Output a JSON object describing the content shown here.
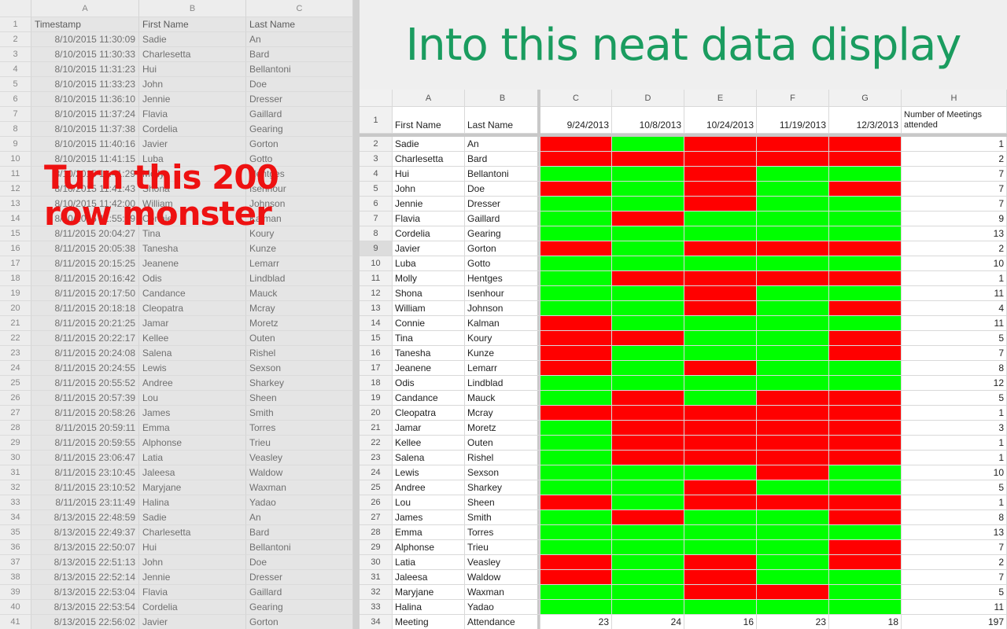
{
  "left_sheet": {
    "columns": [
      "A",
      "B",
      "C"
    ],
    "headers": [
      "Timestamp",
      "First Name",
      "Last Name"
    ],
    "rows": [
      [
        "2",
        "8/10/2015 11:30:09",
        "Sadie",
        "An"
      ],
      [
        "3",
        "8/10/2015 11:30:33",
        "Charlesetta",
        "Bard"
      ],
      [
        "4",
        "8/10/2015 11:31:23",
        "Hui",
        "Bellantoni"
      ],
      [
        "5",
        "8/10/2015 11:33:23",
        "John",
        "Doe"
      ],
      [
        "6",
        "8/10/2015 11:36:10",
        "Jennie",
        "Dresser"
      ],
      [
        "7",
        "8/10/2015 11:37:24",
        "Flavia",
        "Gaillard"
      ],
      [
        "8",
        "8/10/2015 11:37:38",
        "Cordelia",
        "Gearing"
      ],
      [
        "9",
        "8/10/2015 11:40:16",
        "Javier",
        "Gorton"
      ],
      [
        "10",
        "8/10/2015 11:41:15",
        "Luba",
        "Gotto"
      ],
      [
        "11",
        "8/10/2015 11:41:29",
        "Molly",
        "Hentges"
      ],
      [
        "12",
        "8/10/2015 11:41:43",
        "Shona",
        "Isenhour"
      ],
      [
        "13",
        "8/10/2015 11:42:00",
        "William",
        "Johnson"
      ],
      [
        "14",
        "8/10/2015 11:55:59",
        "Connie",
        "Kalman"
      ],
      [
        "15",
        "8/11/2015 20:04:27",
        "Tina",
        "Koury"
      ],
      [
        "16",
        "8/11/2015 20:05:38",
        "Tanesha",
        "Kunze"
      ],
      [
        "17",
        "8/11/2015 20:15:25",
        "Jeanene",
        "Lemarr"
      ],
      [
        "18",
        "8/11/2015 20:16:42",
        "Odis",
        "Lindblad"
      ],
      [
        "19",
        "8/11/2015 20:17:50",
        "Candance",
        "Mauck"
      ],
      [
        "20",
        "8/11/2015 20:18:18",
        "Cleopatra",
        "Mcray"
      ],
      [
        "21",
        "8/11/2015 20:21:25",
        "Jamar",
        "Moretz"
      ],
      [
        "22",
        "8/11/2015 20:22:17",
        "Kellee",
        "Outen"
      ],
      [
        "23",
        "8/11/2015 20:24:08",
        "Salena",
        "Rishel"
      ],
      [
        "24",
        "8/11/2015 20:24:55",
        "Lewis",
        "Sexson"
      ],
      [
        "25",
        "8/11/2015 20:55:52",
        "Andree",
        "Sharkey"
      ],
      [
        "26",
        "8/11/2015 20:57:39",
        "Lou",
        "Sheen"
      ],
      [
        "27",
        "8/11/2015 20:58:26",
        "James",
        "Smith"
      ],
      [
        "28",
        "8/11/2015 20:59:11",
        "Emma",
        "Torres"
      ],
      [
        "29",
        "8/11/2015 20:59:55",
        "Alphonse",
        "Trieu"
      ],
      [
        "30",
        "8/11/2015 23:06:47",
        "Latia",
        "Veasley"
      ],
      [
        "31",
        "8/11/2015 23:10:45",
        "Jaleesa",
        "Waldow"
      ],
      [
        "32",
        "8/11/2015 23:10:52",
        "Maryjane",
        "Waxman"
      ],
      [
        "33",
        "8/11/2015 23:11:49",
        "Halina",
        "Yadao"
      ],
      [
        "34",
        "8/13/2015 22:48:59",
        "Sadie",
        "An"
      ],
      [
        "35",
        "8/13/2015 22:49:37",
        "Charlesetta",
        "Bard"
      ],
      [
        "36",
        "8/13/2015 22:50:07",
        "Hui",
        "Bellantoni"
      ],
      [
        "37",
        "8/13/2015 22:51:13",
        "John",
        "Doe"
      ],
      [
        "38",
        "8/13/2015 22:52:14",
        "Jennie",
        "Dresser"
      ],
      [
        "39",
        "8/13/2015 22:53:04",
        "Flavia",
        "Gaillard"
      ],
      [
        "40",
        "8/13/2015 22:53:54",
        "Cordelia",
        "Gearing"
      ],
      [
        "41",
        "8/13/2015 22:56:02",
        "Javier",
        "Gorton"
      ]
    ]
  },
  "overlay": {
    "line1": "Turn this 200",
    "line2": "row monster",
    "color": "#ee1111"
  },
  "headline": {
    "text": "Into this neat data display",
    "color": "#1a9c5f"
  },
  "right_sheet": {
    "columns": [
      "A",
      "B",
      "C",
      "D",
      "E",
      "F",
      "G",
      "H"
    ],
    "headers": [
      "First Name",
      "Last Name",
      "9/24/2013",
      "10/8/2013",
      "10/24/2013",
      "11/19/2013",
      "12/3/2013",
      "Number of Meetings attended"
    ],
    "rows": [
      {
        "n": "2",
        "first": "Sadie",
        "last": "An",
        "att": "RGRRR",
        "count": "1"
      },
      {
        "n": "3",
        "first": "Charlesetta",
        "last": "Bard",
        "att": "RRRRR",
        "count": "2"
      },
      {
        "n": "4",
        "first": "Hui",
        "last": "Bellantoni",
        "att": "GGRGG",
        "count": "7"
      },
      {
        "n": "5",
        "first": "John",
        "last": "Doe",
        "att": "RGRGR",
        "count": "7"
      },
      {
        "n": "6",
        "first": "Jennie",
        "last": "Dresser",
        "att": "GGRGG",
        "count": "7"
      },
      {
        "n": "7",
        "first": "Flavia",
        "last": "Gaillard",
        "att": "GRGGG",
        "count": "9"
      },
      {
        "n": "8",
        "first": "Cordelia",
        "last": "Gearing",
        "att": "GGGGG",
        "count": "13"
      },
      {
        "n": "9",
        "first": "Javier",
        "last": "Gorton",
        "att": "RGRRR",
        "count": "2"
      },
      {
        "n": "10",
        "first": "Luba",
        "last": "Gotto",
        "att": "GGGGG",
        "count": "10"
      },
      {
        "n": "11",
        "first": "Molly",
        "last": "Hentges",
        "att": "GRRRR",
        "count": "1"
      },
      {
        "n": "12",
        "first": "Shona",
        "last": "Isenhour",
        "att": "GGRGG",
        "count": "11"
      },
      {
        "n": "13",
        "first": "William",
        "last": "Johnson",
        "att": "GGRGR",
        "count": "4"
      },
      {
        "n": "14",
        "first": "Connie",
        "last": "Kalman",
        "att": "RGGGG",
        "count": "11"
      },
      {
        "n": "15",
        "first": "Tina",
        "last": "Koury",
        "att": "RRGGR",
        "count": "5"
      },
      {
        "n": "16",
        "first": "Tanesha",
        "last": "Kunze",
        "att": "RGGGR",
        "count": "7"
      },
      {
        "n": "17",
        "first": "Jeanene",
        "last": "Lemarr",
        "att": "RGRGG",
        "count": "8"
      },
      {
        "n": "18",
        "first": "Odis",
        "last": "Lindblad",
        "att": "GGGGG",
        "count": "12"
      },
      {
        "n": "19",
        "first": "Candance",
        "last": "Mauck",
        "att": "GRGRR",
        "count": "5"
      },
      {
        "n": "20",
        "first": "Cleopatra",
        "last": "Mcray",
        "att": "RRRRR",
        "count": "1"
      },
      {
        "n": "21",
        "first": "Jamar",
        "last": "Moretz",
        "att": "GRRRR",
        "count": "3"
      },
      {
        "n": "22",
        "first": "Kellee",
        "last": "Outen",
        "att": "GRRRR",
        "count": "1"
      },
      {
        "n": "23",
        "first": "Salena",
        "last": "Rishel",
        "att": "GRRRR",
        "count": "1"
      },
      {
        "n": "24",
        "first": "Lewis",
        "last": "Sexson",
        "att": "GGGRG",
        "count": "10"
      },
      {
        "n": "25",
        "first": "Andree",
        "last": "Sharkey",
        "att": "GGRGG",
        "count": "5"
      },
      {
        "n": "26",
        "first": "Lou",
        "last": "Sheen",
        "att": "RGRRR",
        "count": "1"
      },
      {
        "n": "27",
        "first": "James",
        "last": "Smith",
        "att": "GRGGR",
        "count": "8"
      },
      {
        "n": "28",
        "first": "Emma",
        "last": "Torres",
        "att": "GGGGG",
        "count": "13"
      },
      {
        "n": "29",
        "first": "Alphonse",
        "last": "Trieu",
        "att": "GGGGR",
        "count": "7"
      },
      {
        "n": "30",
        "first": "Latia",
        "last": "Veasley",
        "att": "RGRGR",
        "count": "2"
      },
      {
        "n": "31",
        "first": "Jaleesa",
        "last": "Waldow",
        "att": "RGRGG",
        "count": "7"
      },
      {
        "n": "32",
        "first": "Maryjane",
        "last": "Waxman",
        "att": "GGRRG",
        "count": "5"
      },
      {
        "n": "33",
        "first": "Halina",
        "last": "Yadao",
        "att": "GGGGG",
        "count": "11"
      }
    ],
    "totals": {
      "n": "34",
      "first": "Meeting",
      "last": "Attendance",
      "values": [
        "23",
        "24",
        "16",
        "23",
        "18"
      ],
      "count": "197"
    },
    "selected_row": "9",
    "colors": {
      "present": "#00ff00",
      "absent": "#ff0000"
    }
  }
}
